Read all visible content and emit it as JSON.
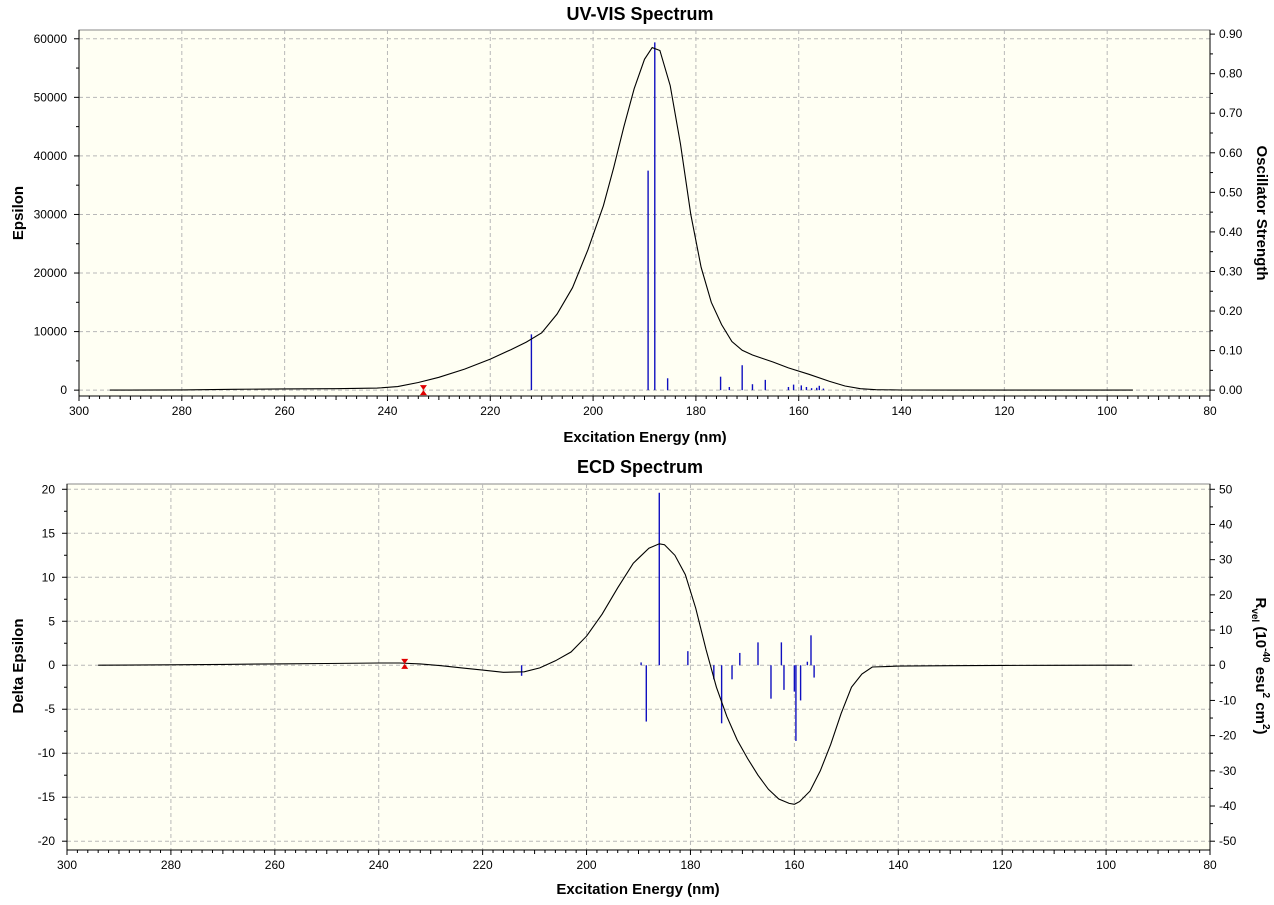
{
  "chart_data": [
    {
      "id": "uv",
      "type": "line",
      "title": "UV-VIS Spectrum",
      "xlabel": "Excitation Energy (nm)",
      "ylabel": "Epsilon",
      "y2label": "Oscillator Strength",
      "xlim": [
        300,
        80
      ],
      "ylim": [
        -1000,
        61500
      ],
      "y2lim": [
        -0.0148,
        0.9104
      ],
      "x_ticks": [
        "300",
        "280",
        "260",
        "240",
        "220",
        "200",
        "180",
        "160",
        "140",
        "120",
        "100",
        "80"
      ],
      "y_ticks": [
        "60000",
        "50000",
        "40000",
        "30000",
        "20000",
        "10000",
        "0"
      ],
      "y2_ticks": [
        "0.90",
        "0.80",
        "0.70",
        "0.60",
        "0.50",
        "0.40",
        "0.30",
        "0.20",
        "0.10",
        "0.00"
      ],
      "grid": true,
      "curve": {
        "x": [
          294,
          280,
          270,
          260,
          250,
          242,
          238,
          234,
          230,
          225,
          220,
          216,
          213,
          210,
          207,
          204,
          201,
          198,
          196,
          194,
          192,
          190,
          188.5,
          187,
          185,
          183,
          181,
          179,
          177,
          175,
          173,
          171,
          169,
          167,
          165,
          162,
          158,
          154,
          151,
          148,
          145,
          140,
          130,
          120,
          110,
          100,
          95
        ],
        "y": [
          0,
          50,
          150,
          220,
          250,
          350,
          600,
          1300,
          2200,
          3600,
          5300,
          6900,
          8200,
          9800,
          13000,
          17500,
          24000,
          31500,
          38000,
          45000,
          51500,
          56500,
          58500,
          58000,
          52000,
          42000,
          30000,
          21000,
          15000,
          11200,
          8300,
          6800,
          6000,
          5400,
          4800,
          3800,
          2700,
          1500,
          700,
          250,
          80,
          20,
          10,
          8,
          5,
          3,
          0
        ]
      },
      "sticks": {
        "x": [
          212,
          189.3,
          188,
          185.5,
          175.2,
          173.5,
          171,
          169,
          166.5,
          162,
          161,
          159.5,
          158.5,
          157.5,
          156.5,
          156,
          155.2
        ],
        "y": [
          0.141,
          0.555,
          0.879,
          0.03,
          0.034,
          0.008,
          0.063,
          0.015,
          0.026,
          0.008,
          0.014,
          0.012,
          0.008,
          0.005,
          0.006,
          0.011,
          0.004
        ]
      },
      "marker": {
        "x": 233,
        "y": 0
      }
    },
    {
      "id": "ecd",
      "type": "line",
      "title": "ECD Spectrum",
      "xlabel": "Excitation Energy (nm)",
      "ylabel": "Delta Epsilon",
      "y2label_parts": [
        "R",
        "vel",
        " (10",
        "-40",
        " esu",
        "2",
        " cm",
        "2",
        ")"
      ],
      "xlim": [
        300,
        80
      ],
      "ylim": [
        -21,
        20.6
      ],
      "y2lim": [
        -52.5,
        51.5
      ],
      "x_ticks": [
        "300",
        "280",
        "260",
        "240",
        "220",
        "200",
        "180",
        "160",
        "140",
        "120",
        "100",
        "80"
      ],
      "y_ticks": [
        "20",
        "15",
        "10",
        "5",
        "0",
        "-5",
        "-10",
        "-15",
        "-20"
      ],
      "y2_ticks": [
        "50",
        "40",
        "30",
        "20",
        "10",
        "0",
        "-10",
        "-20",
        "-30",
        "-40",
        "-50"
      ],
      "grid": true,
      "curve": {
        "x": [
          294,
          280,
          270,
          260,
          250,
          240,
          236,
          232,
          228,
          224,
          220,
          216,
          212,
          209,
          206,
          203,
          200,
          197,
          194,
          191,
          188,
          186,
          185,
          183,
          181,
          179,
          177,
          175,
          173,
          171,
          169,
          167,
          165,
          163,
          161,
          160,
          159,
          157,
          155,
          153,
          151,
          149,
          147,
          145,
          140,
          130,
          120,
          110,
          100,
          95
        ],
        "y": [
          0,
          0.05,
          0.1,
          0.15,
          0.2,
          0.25,
          0.25,
          0.15,
          -0.05,
          -0.3,
          -0.55,
          -0.8,
          -0.75,
          -0.3,
          0.5,
          1.5,
          3.3,
          5.8,
          8.8,
          11.6,
          13.3,
          13.8,
          13.7,
          12.5,
          10.3,
          6.5,
          1.8,
          -2.5,
          -5.8,
          -8.5,
          -10.6,
          -12.5,
          -14.1,
          -15.2,
          -15.7,
          -15.8,
          -15.5,
          -14.3,
          -12,
          -9,
          -5.5,
          -2.5,
          -1,
          -0.2,
          -0.1,
          -0.05,
          -0.02,
          -0.01,
          0,
          0
        ]
      },
      "sticks": {
        "x": [
          212.5,
          189.5,
          188.5,
          186,
          180.5,
          175.5,
          174,
          172,
          170.5,
          167,
          164.5,
          162.5,
          162,
          160,
          159.7,
          158.8,
          157.5,
          156.8,
          156.2
        ],
        "y": [
          -3,
          0.8,
          -16,
          49,
          4,
          -4,
          -16.5,
          -4,
          3.5,
          6.5,
          -9.5,
          6.5,
          -7,
          -7.5,
          -21.5,
          -10,
          1,
          8.5,
          -3.5
        ]
      },
      "marker": {
        "x": 235,
        "y": 0.15
      }
    }
  ]
}
